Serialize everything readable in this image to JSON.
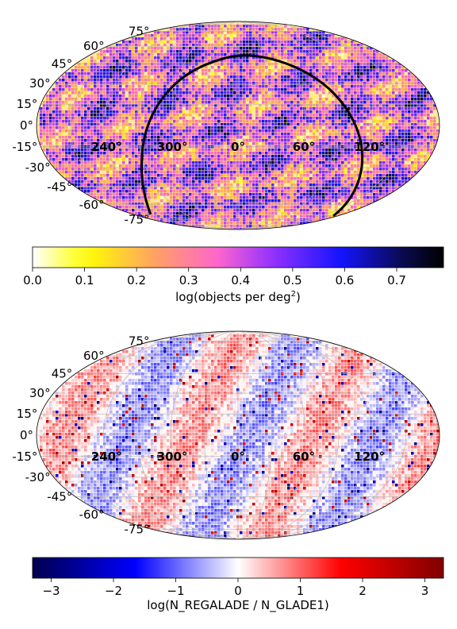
{
  "chart_data": [
    {
      "type": "heatmap",
      "projection": "mollweide",
      "grid": true,
      "lat_labels": [
        "75°",
        "60°",
        "45°",
        "30°",
        "15°",
        "0°",
        "-15°",
        "-30°",
        "-45°",
        "-60°",
        "-75°"
      ],
      "lat_values": [
        75,
        60,
        45,
        30,
        15,
        0,
        -15,
        -30,
        -45,
        -60,
        -75
      ],
      "lon_labels": [
        "240°",
        "300°",
        "0°",
        "60°",
        "120°"
      ],
      "colorbar": {
        "label_main": "log(objects per deg",
        "label_sup": "2",
        "label_end": ")",
        "range": [
          0.0,
          0.79
        ],
        "ticks": [
          "0.0",
          "0.1",
          "0.2",
          "0.3",
          "0.4",
          "0.5",
          "0.6",
          "0.7"
        ],
        "tick_values": [
          0.0,
          0.1,
          0.2,
          0.3,
          0.4,
          0.5,
          0.6,
          0.7
        ],
        "colormap": "gnuplot2_r",
        "colors": [
          "#ffffff",
          "#ffff00",
          "#ff9966",
          "#ff66cc",
          "#9933ff",
          "#0000ff",
          "#000040",
          "#000000"
        ]
      },
      "overlay": "black closed curve (galactic plane boundary)"
    },
    {
      "type": "heatmap",
      "projection": "mollweide",
      "grid": true,
      "lat_labels": [
        "75°",
        "60°",
        "45°",
        "30°",
        "15°",
        "0°",
        "-15°",
        "-30°",
        "-45°",
        "-60°",
        "-75°"
      ],
      "lat_values": [
        75,
        60,
        45,
        30,
        15,
        0,
        -15,
        -30,
        -45,
        -60,
        -75
      ],
      "lon_labels": [
        "240°",
        "300°",
        "0°",
        "60°",
        "120°"
      ],
      "colorbar": {
        "label_main": "log(N_REGALADE / N_GLADE1)",
        "range": [
          -3.3,
          3.3
        ],
        "ticks": [
          "−3",
          "−2",
          "−1",
          "0",
          "1",
          "2",
          "3"
        ],
        "tick_values": [
          -3,
          -2,
          -1,
          0,
          1,
          2,
          3
        ],
        "colormap": "seismic",
        "colors": [
          "#00004d",
          "#0000ff",
          "#ffffff",
          "#ff0000",
          "#800000"
        ]
      }
    }
  ]
}
